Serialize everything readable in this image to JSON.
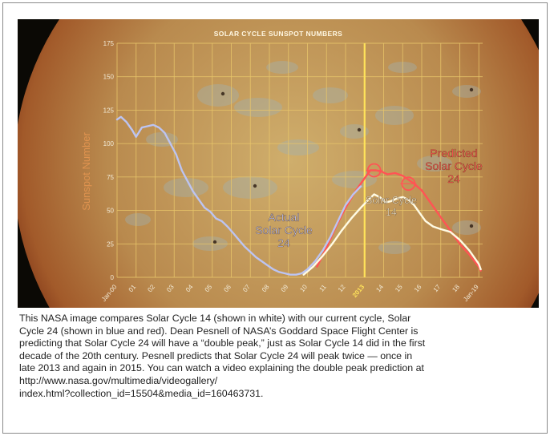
{
  "chart_data": {
    "type": "line",
    "title": "SOLAR CYCLE SUNSPOT NUMBERS",
    "ylabel": "Sunspot Number",
    "ylim": [
      0,
      175
    ],
    "yticks": [
      0,
      25,
      50,
      75,
      100,
      125,
      150,
      175
    ],
    "xlim": [
      2000,
      2019.2
    ],
    "xticks": [
      {
        "x": 2000,
        "label": "Jan-00"
      },
      {
        "x": 2001,
        "label": "01"
      },
      {
        "x": 2002,
        "label": "02"
      },
      {
        "x": 2003,
        "label": "03"
      },
      {
        "x": 2004,
        "label": "04"
      },
      {
        "x": 2005,
        "label": "05"
      },
      {
        "x": 2006,
        "label": "06"
      },
      {
        "x": 2007,
        "label": "07"
      },
      {
        "x": 2008,
        "label": "08"
      },
      {
        "x": 2009,
        "label": "09"
      },
      {
        "x": 2010,
        "label": "10"
      },
      {
        "x": 2011,
        "label": "11"
      },
      {
        "x": 2012,
        "label": "12"
      },
      {
        "x": 2013,
        "label": "2013"
      },
      {
        "x": 2014,
        "label": "14"
      },
      {
        "x": 2015,
        "label": "15"
      },
      {
        "x": 2016,
        "label": "16"
      },
      {
        "x": 2017,
        "label": "17"
      },
      {
        "x": 2018,
        "label": "18"
      },
      {
        "x": 2019,
        "label": "Jan-19"
      }
    ],
    "highlight_x": 2013,
    "grid": true,
    "series": [
      {
        "id": "actual",
        "color": "#bcc4f2",
        "label_lines": [
          "Actual",
          "Solar Cycle",
          "24"
        ],
        "x": [
          2000.0,
          2000.2,
          2000.5,
          2000.8,
          2001.0,
          2001.3,
          2001.6,
          2001.9,
          2002.2,
          2002.5,
          2002.8,
          2003.1,
          2003.4,
          2003.7,
          2004.0,
          2004.3,
          2004.6,
          2004.9,
          2005.2,
          2005.5,
          2005.8,
          2006.1,
          2006.4,
          2006.7,
          2007.0,
          2007.3,
          2007.6,
          2007.9,
          2008.2,
          2008.5,
          2008.8,
          2009.1,
          2009.4,
          2009.7,
          2010.0,
          2010.4,
          2010.8,
          2011.2,
          2011.6,
          2012.0,
          2012.4,
          2012.8
        ],
        "y": [
          118,
          120,
          116,
          110,
          105,
          112,
          113,
          114,
          112,
          108,
          100,
          92,
          80,
          72,
          64,
          58,
          52,
          49,
          44,
          42,
          38,
          33,
          28,
          23,
          19,
          15,
          12,
          9,
          6,
          4,
          3,
          2,
          2,
          3,
          6,
          12,
          20,
          30,
          42,
          54,
          62,
          68
        ]
      },
      {
        "id": "cycle14",
        "color": "#fffbe4",
        "label_lines": [
          "Solar Cycle",
          "14"
        ],
        "x": [
          2009.8,
          2010.3,
          2010.8,
          2011.3,
          2011.8,
          2012.3,
          2012.8,
          2013.2,
          2013.5,
          2013.8,
          2014.1,
          2014.4,
          2014.7,
          2015.0,
          2015.3,
          2015.6,
          2015.9,
          2016.2,
          2016.6,
          2017.0,
          2017.5,
          2018.0,
          2018.5,
          2019.0,
          2019.1
        ],
        "y": [
          2,
          8,
          16,
          25,
          35,
          44,
          52,
          58,
          62,
          60,
          56,
          57,
          59,
          60,
          58,
          54,
          48,
          42,
          38,
          36,
          34,
          28,
          20,
          10,
          6
        ]
      },
      {
        "id": "predicted",
        "color": "#ff5454",
        "label_lines": [
          "Predicted",
          "Solar Cycle",
          "24"
        ],
        "x": [
          2010.5,
          2011.0,
          2011.5,
          2012.0,
          2012.5,
          2013.0,
          2013.3,
          2013.6,
          2013.9,
          2014.2,
          2014.6,
          2015.0,
          2015.3,
          2015.6,
          2016.0,
          2016.5,
          2017.0,
          2017.5,
          2018.0,
          2018.5,
          2019.0,
          2019.1
        ],
        "y": [
          8,
          22,
          38,
          52,
          64,
          74,
          80,
          80,
          79,
          77,
          78,
          76,
          73,
          70,
          65,
          55,
          45,
          35,
          25,
          17,
          8,
          5
        ]
      }
    ],
    "peak_markers": [
      {
        "x": 2013.5,
        "y": 80
      },
      {
        "x": 2015.3,
        "y": 70
      }
    ]
  },
  "caption": "This NASA image compares Solar Cycle 14 (shown in white) with our current cycle, Solar\nCycle 24 (shown in blue and red). Dean Pesnell of NASA’s Goddard Space Flight Center is\npredicting that Solar Cycle 24 will have a “double peak,” just as Solar Cycle 14 did in the first\ndecade of the 20th century. Pesnell predicts that Solar Cycle 24 will peak twice — once in\nlate 2013 and again in 2015. You can watch a video explaining the double peak prediction at\nhttp://www.nasa.gov/multimedia/videogallery/\nindex.html?collection_id=15504&media_id=160463731.",
  "colors": {
    "sun_core": "#c9a15e",
    "sun_edge": "#9c4a22",
    "grid": "#e8c66a",
    "highlight": "#ffe35a",
    "axis_text": "#f2ead6"
  }
}
